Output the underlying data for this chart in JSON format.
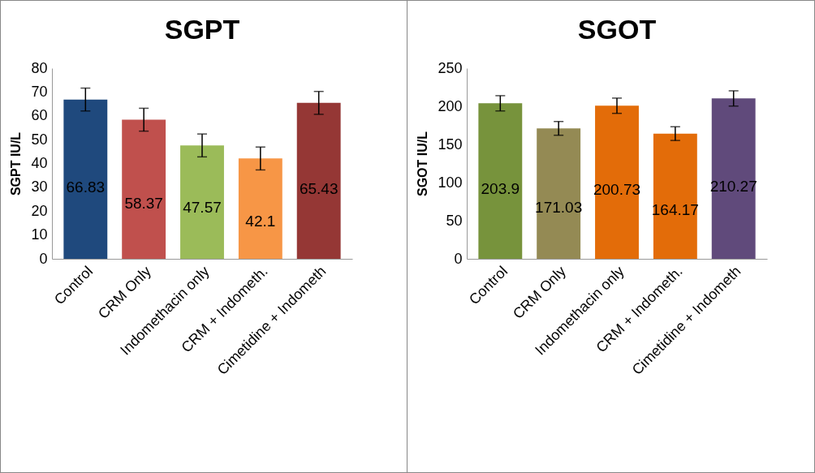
{
  "chart_data": [
    {
      "type": "bar",
      "title": "SGPT",
      "ylabel": "SGPT IU/L",
      "categories": [
        "Control",
        "CRM  Only",
        "Indomethacin only",
        "CRM + Indometh.",
        "Cimetidine + Indometh"
      ],
      "values": [
        66.83,
        58.37,
        47.57,
        42.1,
        65.43
      ],
      "colors": [
        "#1f497d",
        "#c0504d",
        "#9bbb59",
        "#f79646",
        "#953735"
      ],
      "errors": [
        4.8,
        4.8,
        4.8,
        4.8,
        4.8
      ],
      "ylim": [
        0,
        80
      ],
      "yticks": [
        0,
        10,
        20,
        30,
        40,
        50,
        60,
        70,
        80
      ],
      "data_labels": true,
      "grid": false,
      "legend": false
    },
    {
      "type": "bar",
      "title": "SGOT",
      "ylabel": "SGOT IU/L",
      "categories": [
        "Control",
        "CRM  Only",
        "Indomethacin only",
        "CRM + Indometh.",
        "Cimetidine + Indometh"
      ],
      "values": [
        203.9,
        171.03,
        200.73,
        164.17,
        210.27
      ],
      "colors": [
        "#77933c",
        "#948a54",
        "#e36c09",
        "#e36c09",
        "#604a7b"
      ],
      "errors": [
        10,
        9,
        10,
        9,
        10
      ],
      "ylim": [
        0,
        250
      ],
      "yticks": [
        0,
        50,
        100,
        150,
        200,
        250
      ],
      "data_labels": true,
      "grid": false,
      "legend": false
    }
  ]
}
